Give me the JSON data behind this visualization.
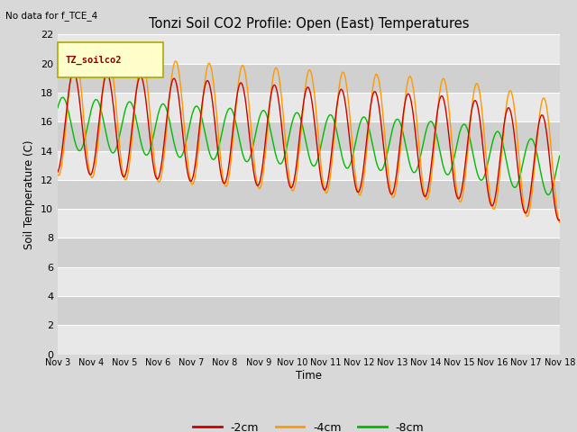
{
  "title": "Tonzi Soil CO2 Profile: Open (East) Temperatures",
  "subtitle": "No data for f_TCE_4",
  "ylabel": "Soil Temperature (C)",
  "xlabel": "Time",
  "legend_label": "TZ_soilco2",
  "ylim": [
    0,
    22
  ],
  "yticks": [
    0,
    2,
    4,
    6,
    8,
    10,
    12,
    14,
    16,
    18,
    20,
    22
  ],
  "xtick_labels": [
    "Nov 3",
    "Nov 4",
    "Nov 5",
    "Nov 6",
    "Nov 7",
    "Nov 8",
    "Nov 9",
    "Nov 10",
    "Nov 11",
    "Nov 12",
    "Nov 13",
    "Nov 14",
    "Nov 15",
    "Nov 16",
    "Nov 17",
    "Nov 18"
  ],
  "line_colors": [
    "#cc0000",
    "#ff9900",
    "#00bb00"
  ],
  "line_labels": [
    "-2cm",
    "-4cm",
    "-8cm"
  ],
  "bg_light": "#e8e8e8",
  "bg_dark": "#d0d0d0",
  "grid_color": "#ffffff",
  "fig_bg": "#d8d8d8",
  "legend_box_color": "#ffffcc",
  "legend_box_edge": "#aaaa00",
  "legend_text_color": "#880000"
}
